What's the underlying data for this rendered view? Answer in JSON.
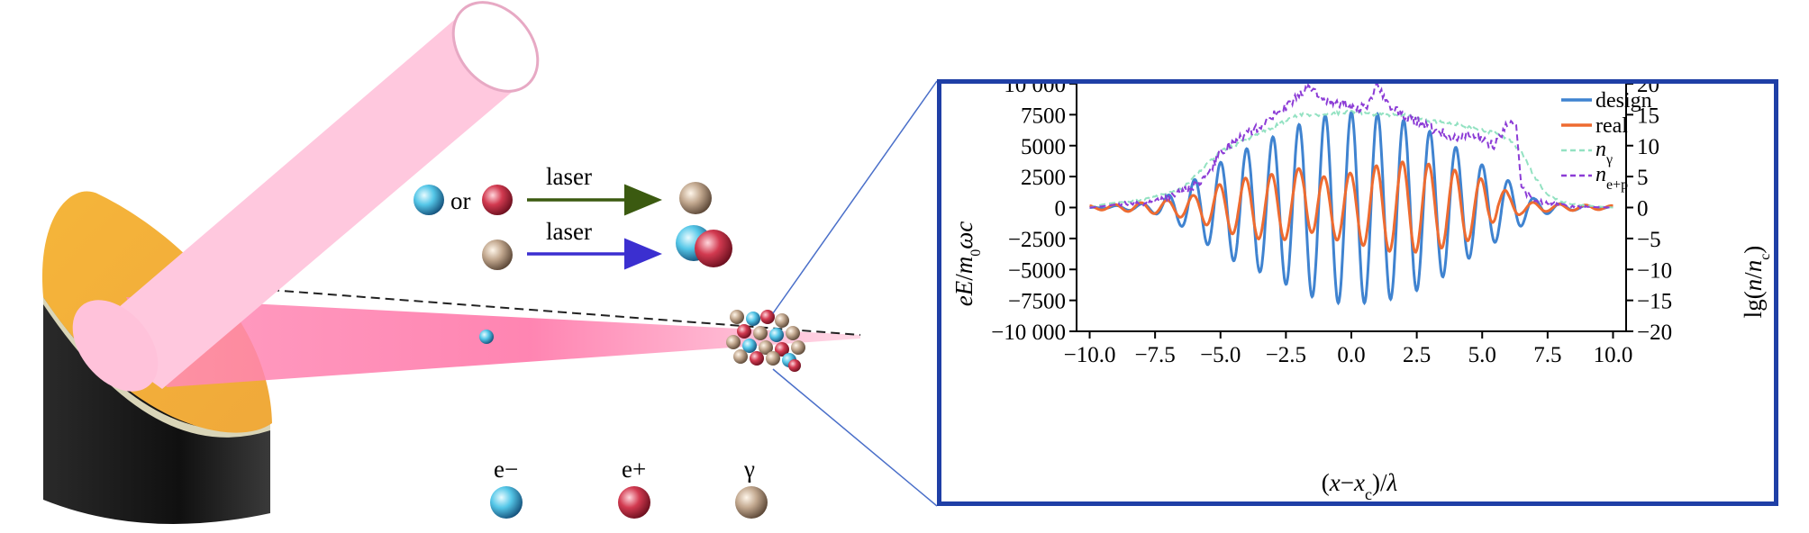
{
  "illustration": {
    "labels": {
      "or": "or",
      "laser_top": "laser",
      "laser_bottom": "laser",
      "electron": "e−",
      "positron": "e+",
      "gamma": "γ"
    },
    "colors": {
      "electron": "#35a8d6",
      "positron": "#c8283f",
      "gamma": "#b49a82",
      "mirror_face": "#f0b13f",
      "mirror_base": "#151515",
      "laser_beam": "#ffc8de",
      "arrow_green": "#3b5a10",
      "arrow_blue": "#3b2fd0"
    }
  },
  "chart_data": {
    "type": "line",
    "xlabel": "(x−x_c)/λ",
    "ylabel_left": "eE/m₀ωc",
    "ylabel_right": "lg(n/n_c)",
    "xlim": [
      -10.5,
      10.5
    ],
    "ylim_left": [
      -10000,
      10000
    ],
    "ylim_right": [
      -20,
      20
    ],
    "xticks": [
      "−10.0",
      "−7.5",
      "−5.0",
      "−2.5",
      "0.0",
      "2.5",
      "5.0",
      "7.5",
      "10.0"
    ],
    "yticks_left": [
      "10 000",
      "7500",
      "5000",
      "2500",
      "0",
      "−2500",
      "−5000",
      "−7500",
      "−10 000"
    ],
    "yticks_right": [
      "20",
      "15",
      "10",
      "5",
      "0",
      "−5",
      "−10",
      "−15",
      "−20"
    ],
    "legend_position": "top-right",
    "series": [
      {
        "name": "design",
        "axis": "left",
        "style": "solid",
        "color": "#3f83d0",
        "envelope": [
          [
            -10,
            0
          ],
          [
            -9,
            150
          ],
          [
            -8,
            300
          ],
          [
            -7.5,
            500
          ],
          [
            -6.5,
            1500
          ],
          [
            -5.5,
            3000
          ],
          [
            -4.5,
            4300
          ],
          [
            -3.5,
            5200
          ],
          [
            -2.5,
            6200
          ],
          [
            -1.5,
            7200
          ],
          [
            -0.5,
            7700
          ],
          [
            0.5,
            7700
          ],
          [
            1.5,
            7400
          ],
          [
            2.5,
            6700
          ],
          [
            3.5,
            5600
          ],
          [
            4.5,
            4100
          ],
          [
            5.5,
            2800
          ],
          [
            6.3,
            1800
          ],
          [
            7,
            700
          ],
          [
            8,
            300
          ],
          [
            9,
            150
          ],
          [
            10,
            80
          ]
        ],
        "wavelength": 1.0,
        "phase": 0.0
      },
      {
        "name": "real",
        "axis": "left",
        "style": "solid",
        "color": "#ee6b30",
        "envelope": [
          [
            -10,
            150
          ],
          [
            -9,
            250
          ],
          [
            -8,
            400
          ],
          [
            -7,
            600
          ],
          [
            -6,
            1000
          ],
          [
            -5,
            1900
          ],
          [
            -4,
            2400
          ],
          [
            -3,
            2700
          ],
          [
            -2,
            2500
          ],
          [
            -1,
            2500
          ],
          [
            0,
            2800
          ],
          [
            1,
            3400
          ],
          [
            2,
            3700
          ],
          [
            3,
            3500
          ],
          [
            4,
            3000
          ],
          [
            5,
            2300
          ],
          [
            5.8,
            1300
          ],
          [
            6.5,
            500
          ],
          [
            7.5,
            300
          ],
          [
            9,
            200
          ],
          [
            10,
            150
          ]
        ],
        "wavelength": 1.0,
        "phase": 0.3,
        "offset": [
          [
            -10,
            0
          ],
          [
            -2.2,
            0
          ],
          [
            -1.8,
            1500
          ],
          [
            -1.4,
            0
          ],
          [
            5.2,
            0
          ],
          [
            5.6,
            1000
          ],
          [
            6.0,
            0
          ],
          [
            10,
            0
          ]
        ]
      },
      {
        "name": "nγ",
        "axis": "right",
        "style": "dashed",
        "color": "#93e2c2",
        "points": [
          [
            -10,
            0
          ],
          [
            -9.5,
            0.5
          ],
          [
            -9,
            0.8
          ],
          [
            -8.5,
            1
          ],
          [
            -8,
            1.2
          ],
          [
            -7.5,
            1.8
          ],
          [
            -7,
            2.3
          ],
          [
            -6.5,
            3
          ],
          [
            -6,
            5
          ],
          [
            -5.5,
            7
          ],
          [
            -5,
            9
          ],
          [
            -4.5,
            10
          ],
          [
            -4,
            11
          ],
          [
            -3.5,
            12
          ],
          [
            -3,
            13
          ],
          [
            -2.5,
            14
          ],
          [
            -2,
            15
          ],
          [
            -1,
            15
          ],
          [
            0,
            15.5
          ],
          [
            1,
            15
          ],
          [
            2,
            15
          ],
          [
            3,
            14
          ],
          [
            4,
            13.5
          ],
          [
            5,
            12.5
          ],
          [
            5.5,
            12
          ],
          [
            6,
            11
          ],
          [
            6.5,
            9
          ],
          [
            7,
            5
          ],
          [
            7.5,
            2
          ],
          [
            8,
            1
          ],
          [
            8.5,
            0.5
          ],
          [
            9,
            0.3
          ],
          [
            10,
            0
          ]
        ]
      },
      {
        "name": "ne+p",
        "axis": "right",
        "style": "dashed",
        "color": "#8c3cd6",
        "points": [
          [
            -10,
            0
          ],
          [
            -9.5,
            0.2
          ],
          [
            -9,
            0.5
          ],
          [
            -8.5,
            0.8
          ],
          [
            -8,
            0.6
          ],
          [
            -7.5,
            1.2
          ],
          [
            -7,
            1.8
          ],
          [
            -6.5,
            2.5
          ],
          [
            -6,
            3.5
          ],
          [
            -5.5,
            5
          ],
          [
            -5,
            9
          ],
          [
            -4.5,
            10.5
          ],
          [
            -4,
            12
          ],
          [
            -3.5,
            13
          ],
          [
            -3,
            15
          ],
          [
            -2.5,
            16
          ],
          [
            -2,
            18.5
          ],
          [
            -1.5,
            19.5
          ],
          [
            -1,
            17
          ],
          [
            -0.5,
            17
          ],
          [
            0,
            16.5
          ],
          [
            0.5,
            16
          ],
          [
            1,
            19.5
          ],
          [
            1.5,
            16
          ],
          [
            2,
            15
          ],
          [
            2.5,
            14
          ],
          [
            3,
            13
          ],
          [
            3.5,
            12
          ],
          [
            4,
            11
          ],
          [
            4.5,
            12
          ],
          [
            5,
            11
          ],
          [
            5.5,
            10
          ],
          [
            6,
            14
          ],
          [
            6.3,
            14
          ],
          [
            6.5,
            3
          ],
          [
            7,
            1
          ],
          [
            7.5,
            0.8
          ],
          [
            8,
            0.4
          ],
          [
            9,
            0.1
          ],
          [
            10,
            0
          ]
        ]
      }
    ]
  }
}
